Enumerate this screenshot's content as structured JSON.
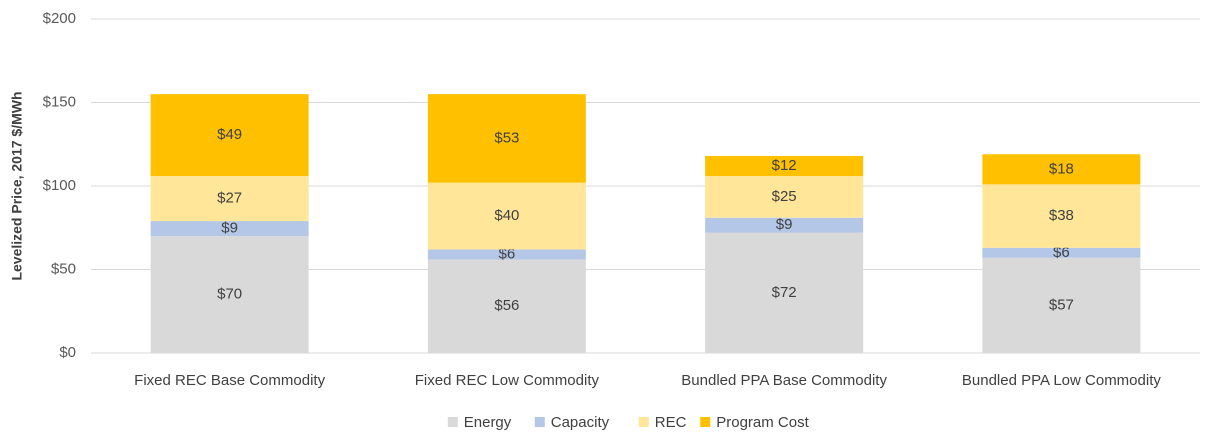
{
  "chart_data": {
    "type": "bar",
    "stacked": true,
    "y_label": "Levelized Price, 2017 $/MWh",
    "categories": [
      "Fixed REC Base Commodity",
      "Fixed REC Low Commodity",
      "Bundled PPA Base Commodity",
      "Bundled PPA Low Commodity"
    ],
    "series": [
      {
        "name": "Energy",
        "color": "#d9d9d9",
        "values": [
          70,
          56,
          72,
          57
        ],
        "value_labels": [
          "$70",
          "$56",
          "$72",
          "$57"
        ]
      },
      {
        "name": "Capacity",
        "color": "#b4c7e7",
        "values": [
          9,
          6,
          9,
          6
        ],
        "value_labels": [
          "$9",
          "$6",
          "$9",
          "$6"
        ]
      },
      {
        "name": "REC",
        "color": "#ffe699",
        "values": [
          27,
          40,
          25,
          38
        ],
        "value_labels": [
          "$27",
          "$40",
          "$25",
          "$38"
        ]
      },
      {
        "name": "Program Cost",
        "color": "#ffc000",
        "values": [
          49,
          53,
          12,
          18
        ],
        "value_labels": [
          "$49",
          "$53",
          "$12",
          "$18"
        ]
      }
    ],
    "ylim": [
      0,
      200
    ],
    "yticks": [
      {
        "value": 0,
        "label": "$0"
      },
      {
        "value": 50,
        "label": "$50"
      },
      {
        "value": 100,
        "label": "$100"
      },
      {
        "value": 150,
        "label": "$150"
      },
      {
        "value": 200,
        "label": "$200"
      }
    ],
    "grid": true,
    "legend": "bottom"
  }
}
